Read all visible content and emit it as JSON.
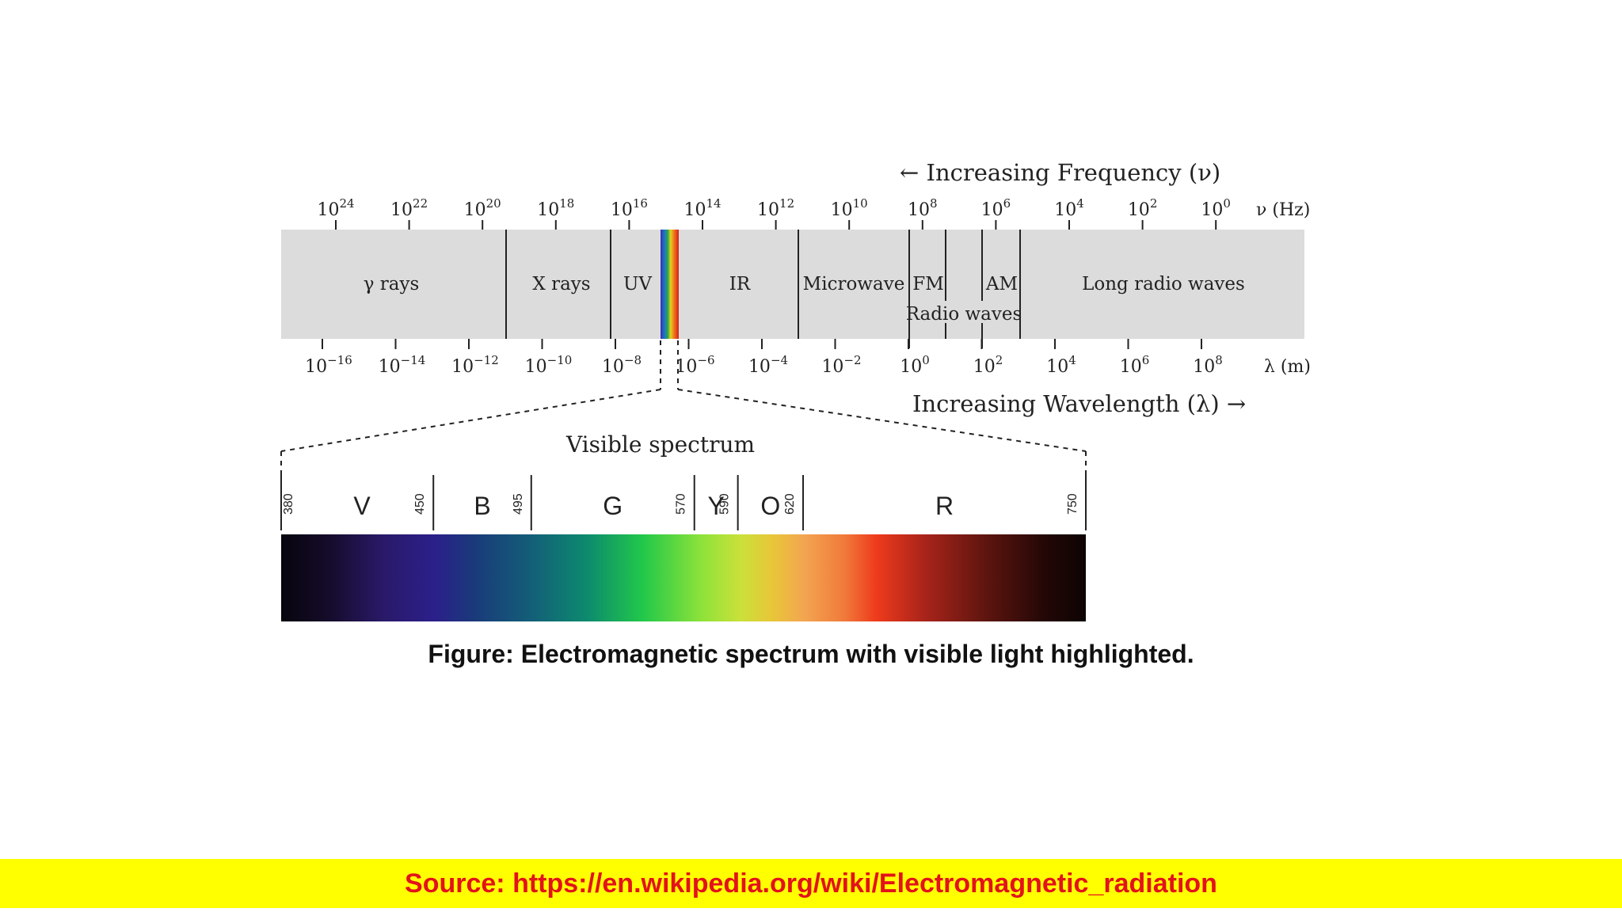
{
  "top_label": "← Increasing Frequency (ν)",
  "bottom_label": "Increasing Wavelength (λ) →",
  "frequency_ticks": [
    {
      "base": "10",
      "exp": "24"
    },
    {
      "base": "10",
      "exp": "22"
    },
    {
      "base": "10",
      "exp": "20"
    },
    {
      "base": "10",
      "exp": "18"
    },
    {
      "base": "10",
      "exp": "16"
    },
    {
      "base": "10",
      "exp": "14"
    },
    {
      "base": "10",
      "exp": "12"
    },
    {
      "base": "10",
      "exp": "10"
    },
    {
      "base": "10",
      "exp": "8"
    },
    {
      "base": "10",
      "exp": "6"
    },
    {
      "base": "10",
      "exp": "4"
    },
    {
      "base": "10",
      "exp": "2"
    },
    {
      "base": "10",
      "exp": "0"
    }
  ],
  "frequency_unit": "ν (Hz)",
  "wavelength_ticks": [
    {
      "base": "10",
      "exp": "−16"
    },
    {
      "base": "10",
      "exp": "−14"
    },
    {
      "base": "10",
      "exp": "−12"
    },
    {
      "base": "10",
      "exp": "−10"
    },
    {
      "base": "10",
      "exp": "−8"
    },
    {
      "base": "10",
      "exp": "−6"
    },
    {
      "base": "10",
      "exp": "−4"
    },
    {
      "base": "10",
      "exp": "−2"
    },
    {
      "base": "10",
      "exp": "0"
    },
    {
      "base": "10",
      "exp": "2"
    },
    {
      "base": "10",
      "exp": "4"
    },
    {
      "base": "10",
      "exp": "6"
    },
    {
      "base": "10",
      "exp": "8"
    }
  ],
  "wavelength_unit": "λ (m)",
  "regions": {
    "gamma": "γ rays",
    "xray": "X rays",
    "uv": "UV",
    "ir": "IR",
    "microwave": "Microwave",
    "fm": "FM",
    "am": "AM",
    "radio": "Radio waves",
    "long_radio": "Long radio waves"
  },
  "visible": {
    "title": "Visible spectrum",
    "bands": [
      {
        "letter": "V"
      },
      {
        "letter": "B"
      },
      {
        "letter": "G"
      },
      {
        "letter": "Y"
      },
      {
        "letter": "O"
      },
      {
        "letter": "R"
      }
    ],
    "boundaries_nm": [
      "380",
      "450",
      "495",
      "570",
      "590",
      "620",
      "750"
    ]
  },
  "caption": "Figure: Electromagnetic spectrum with visible light highlighted.",
  "source": "Source: https://en.wikipedia.org/wiki/Electromagnetic_radiation",
  "colors": {
    "band_gray": "#dcdcdc",
    "source_bg": "#ffff00",
    "source_text": "#e3121b"
  }
}
